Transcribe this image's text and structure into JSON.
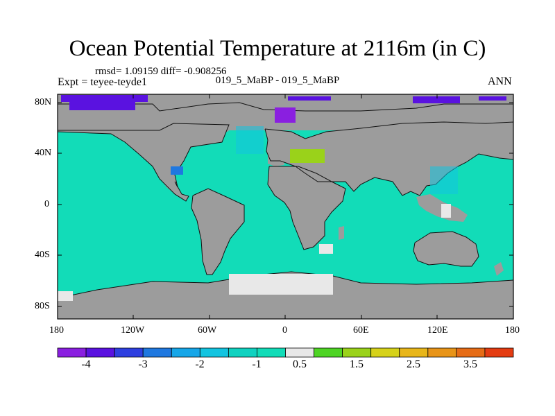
{
  "header": {
    "title": "Ocean Potential Temperature at 2116m (in C)",
    "stats": "rmsd= 1.09159 diff= -0.908256",
    "expt": "Expt = teyee-teyde1",
    "subtitle": "019_5_MaBP - 019_5_MaBP",
    "season": "ANN"
  },
  "axes": {
    "lat_ticks": [
      "80N",
      "40N",
      "0",
      "40S",
      "80S"
    ],
    "lon_ticks": [
      "180",
      "120W",
      "60W",
      "0",
      "60E",
      "120E",
      "180"
    ]
  },
  "colorbar": {
    "labels": [
      "-4",
      "-3",
      "-2",
      "-1",
      "0.5",
      "1.5",
      "2.5",
      "3.5"
    ],
    "colors": [
      "#8a1fe0",
      "#5a12e0",
      "#2e3fe0",
      "#1f78e0",
      "#16a6e8",
      "#13c4e0",
      "#10d2c0",
      "#12dcb8",
      "#e8e8e8",
      "#4ed424",
      "#9ad21a",
      "#d6d21a",
      "#e8b61a",
      "#e89418",
      "#e66c16",
      "#e43c12"
    ]
  },
  "map": {
    "land_color": "#9c9c9c",
    "ocean_color": "#12dcb8",
    "coast_color": "#111111"
  }
}
